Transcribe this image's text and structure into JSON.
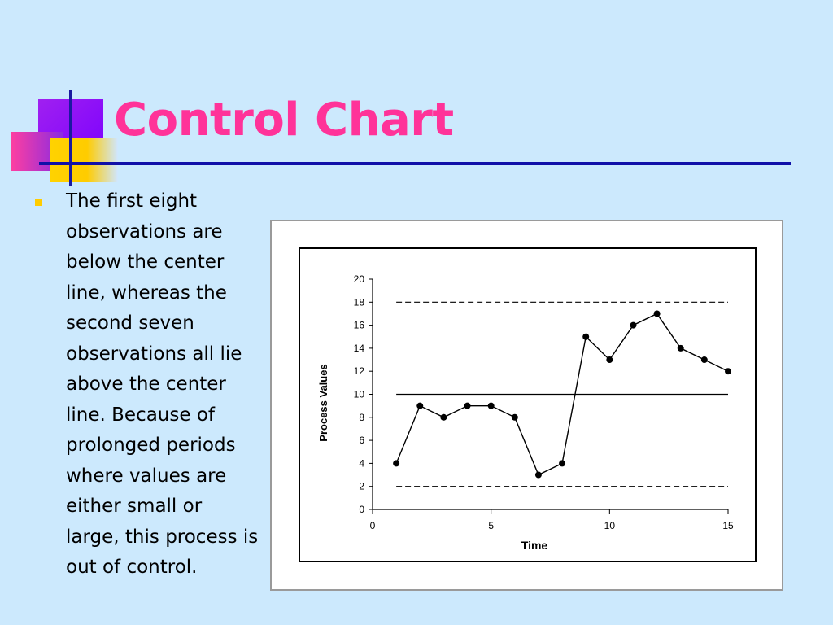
{
  "slide": {
    "title": "Control Chart",
    "bullet_text": "The first eight observations are below the center line, whereas the second seven observations all lie above the center line. Because of prolonged periods where values are either small or large, this process is out of control."
  },
  "colors": {
    "background": "#cce9fd",
    "title": "#ff3399",
    "rule": "#1010a8",
    "bullet": "#ffcc00"
  },
  "chart_data": {
    "type": "line",
    "title": "",
    "xlabel": "Time",
    "ylabel": "Process Values",
    "xlim": [
      0,
      15
    ],
    "ylim": [
      0,
      20
    ],
    "x_ticks": [
      0,
      5,
      10,
      15
    ],
    "y_ticks": [
      0,
      2,
      4,
      6,
      8,
      10,
      12,
      14,
      16,
      18,
      20
    ],
    "grid": false,
    "x": [
      1,
      2,
      3,
      4,
      5,
      6,
      7,
      8,
      9,
      10,
      11,
      12,
      13,
      14,
      15
    ],
    "values": [
      4,
      9,
      8,
      9,
      9,
      8,
      3,
      4,
      15,
      13,
      16,
      17,
      14,
      13,
      12
    ],
    "center_line": 10,
    "upper_control_limit": 18,
    "lower_control_limit": 2
  }
}
